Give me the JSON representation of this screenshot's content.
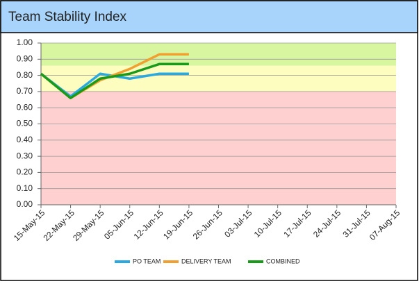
{
  "chart_data": {
    "type": "line",
    "title": "Team Stability Index",
    "categories": [
      "15-May-15",
      "22-May-15",
      "29-May-15",
      "05-Jun-15",
      "12-Jun-15",
      "19-Jun-15",
      "26-Jun-15",
      "03-Jul-15",
      "10-Jul-15",
      "17-Jul-15",
      "24-Jul-15",
      "31-Jul-15",
      "07-Aug-15"
    ],
    "series": [
      {
        "name": "PO TEAM",
        "color": "#2aa8e0",
        "values": [
          0.81,
          0.67,
          0.81,
          0.78,
          0.81,
          0.81,
          null,
          null,
          null,
          null,
          null,
          null,
          null
        ]
      },
      {
        "name": "DELIVERY TEAM",
        "color": "#f0a030",
        "values": [
          0.81,
          0.66,
          0.77,
          0.84,
          0.93,
          0.93,
          null,
          null,
          null,
          null,
          null,
          null,
          null
        ]
      },
      {
        "name": "COMBINED",
        "color": "#1a9a1a",
        "values": [
          0.81,
          0.66,
          0.78,
          0.81,
          0.87,
          0.87,
          null,
          null,
          null,
          null,
          null,
          null,
          null
        ]
      }
    ],
    "bands": [
      {
        "from": 0,
        "to": 0.7,
        "color": "#ffd0d0"
      },
      {
        "from": 0.7,
        "to": 0.86,
        "color": "#fdfdc0"
      },
      {
        "from": 0.86,
        "to": 1,
        "color": "#d8f5a0"
      }
    ],
    "ylim": [
      0,
      1
    ],
    "yticks": [
      {
        "value": 0,
        "label": "0.00"
      },
      {
        "value": 0.1,
        "label": "0.10"
      },
      {
        "value": 0.2,
        "label": "0.20"
      },
      {
        "value": 0.3,
        "label": "0.30"
      },
      {
        "value": 0.4,
        "label": "0.40"
      },
      {
        "value": 0.5,
        "label": "0.50"
      },
      {
        "value": 0.6,
        "label": "0.60"
      },
      {
        "value": 0.7,
        "label": "0.70"
      },
      {
        "value": 0.8,
        "label": "0.80"
      },
      {
        "value": 0.9,
        "label": "0.90"
      },
      {
        "value": 1,
        "label": "1.00"
      }
    ],
    "grid": true,
    "legend": "bottom"
  }
}
